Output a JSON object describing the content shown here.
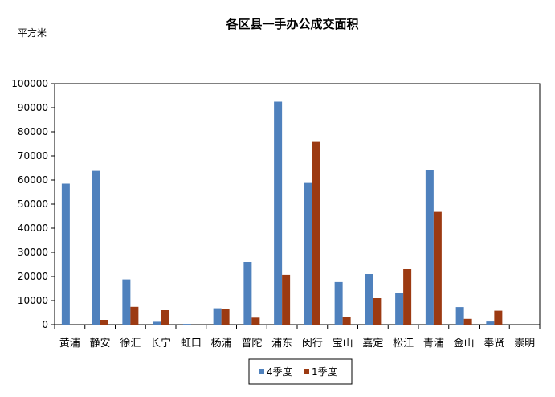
{
  "chart_data": {
    "type": "bar",
    "title": "各区县一手办公成交面积",
    "ylabel": "平方米",
    "xlabel": "",
    "ylim": [
      0,
      100000
    ],
    "yticks": [
      0,
      10000,
      20000,
      30000,
      40000,
      50000,
      60000,
      70000,
      80000,
      90000,
      100000
    ],
    "grid": false,
    "legend_position": "bottom",
    "categories": [
      "黄浦",
      "静安",
      "徐汇",
      "长宁",
      "虹口",
      "杨浦",
      "普陀",
      "浦东",
      "闵行",
      "宝山",
      "嘉定",
      "松江",
      "青浦",
      "金山",
      "奉贤",
      "崇明"
    ],
    "series": [
      {
        "name": "4季度",
        "color": "#4f81bd",
        "values": [
          58500,
          63800,
          18800,
          1200,
          300,
          6800,
          26000,
          92500,
          58800,
          17700,
          21000,
          13200,
          64300,
          7300,
          1300,
          0
        ]
      },
      {
        "name": "1季度",
        "color": "#9c3a12",
        "values": [
          0,
          2000,
          7400,
          6000,
          0,
          6400,
          2900,
          20700,
          75800,
          3300,
          11000,
          23000,
          46800,
          2400,
          5800,
          0
        ]
      }
    ]
  }
}
